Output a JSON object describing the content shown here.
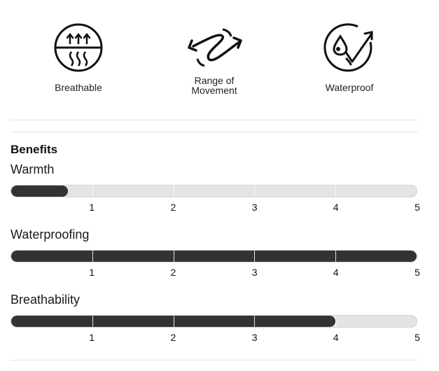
{
  "features": [
    {
      "label": "Breathable",
      "icon": "breathable-icon"
    },
    {
      "label": "Range of\nMovement",
      "icon": "range-of-movement-icon"
    },
    {
      "label": "Waterproof",
      "icon": "waterproof-icon"
    }
  ],
  "benefits": {
    "title": "Benefits",
    "scale_max": 5,
    "ticks": [
      "1",
      "2",
      "3",
      "4",
      "5"
    ],
    "meters": [
      {
        "label": "Warmth",
        "value": 0.7
      },
      {
        "label": "Waterproofing",
        "value": 5
      },
      {
        "label": "Breathability",
        "value": 4
      }
    ]
  },
  "colors": {
    "fill": "#333333",
    "track": "#e4e4e4",
    "separator": "#e2e2e2"
  }
}
